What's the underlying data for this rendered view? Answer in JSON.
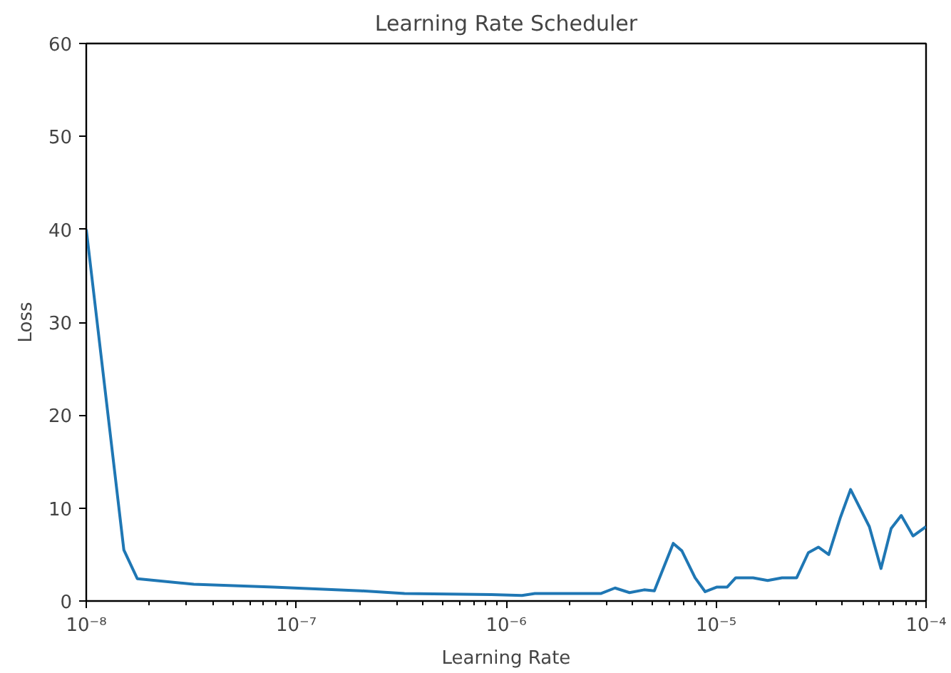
{
  "chart_data": {
    "type": "line",
    "title": "Learning Rate Scheduler",
    "xlabel": "Learning Rate",
    "ylabel": "Loss",
    "log": "x",
    "xlim": [
      1e-08,
      0.0001
    ],
    "ylim": [
      0,
      60
    ],
    "xticks": [
      {
        "value": 1e-08,
        "label": "10⁻⁸"
      },
      {
        "value": 1e-07,
        "label": "10⁻⁷"
      },
      {
        "value": 1e-06,
        "label": "10⁻⁶"
      },
      {
        "value": 1e-05,
        "label": "10⁻⁵"
      },
      {
        "value": 0.0001,
        "label": "10⁻⁴"
      }
    ],
    "yticks": [
      0,
      10,
      20,
      30,
      40,
      50,
      60
    ],
    "grid": false,
    "marker": "none",
    "line_style": "solid",
    "series": [
      {
        "color": "#1f77b4",
        "x": [
          1e-08,
          1.51e-08,
          1.75e-08,
          3.25e-08,
          7.8e-08,
          2.03e-07,
          3.28e-07,
          8.5e-07,
          1.19e-06,
          1.37e-06,
          2.82e-06,
          3.3e-06,
          3.87e-06,
          4.54e-06,
          5.08e-06,
          6.25e-06,
          6.87e-06,
          7.94e-06,
          8.87e-06,
          1.01e-05,
          1.13e-05,
          1.24e-05,
          1.5e-05,
          1.76e-05,
          2.06e-05,
          2.42e-05,
          2.75e-05,
          3.07e-05,
          3.44e-05,
          3.91e-05,
          4.37e-05,
          5.37e-05,
          6.1e-05,
          6.82e-05,
          7.62e-05,
          8.67e-05,
          0.0001
        ],
        "values": [
          40,
          5.5,
          2.4,
          1.8,
          1.5,
          1.1,
          0.8,
          0.7,
          0.6,
          0.8,
          0.8,
          1.4,
          0.9,
          1.2,
          1.1,
          6.2,
          5.4,
          2.5,
          1.0,
          1.5,
          1.5,
          2.5,
          2.5,
          2.2,
          2.5,
          2.5,
          5.2,
          5.8,
          5.0,
          9.0,
          12.0,
          8.0,
          3.5,
          7.8,
          9.2,
          7.0,
          8.0
        ]
      }
    ]
  }
}
